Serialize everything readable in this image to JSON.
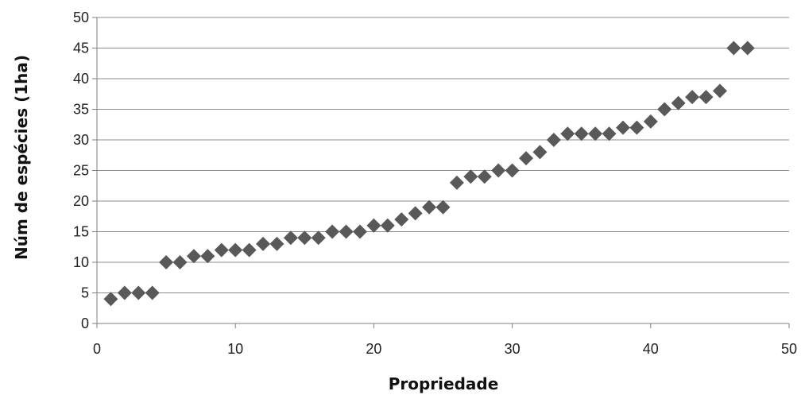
{
  "chart_data": {
    "type": "scatter",
    "title": "",
    "xlabel": "Propriedade",
    "ylabel": "Núm de espécies (1ha)",
    "xlim": [
      0,
      50
    ],
    "ylim": [
      0,
      50
    ],
    "x_ticks": [
      0,
      10,
      20,
      30,
      40,
      50
    ],
    "y_ticks": [
      0,
      5,
      10,
      15,
      20,
      25,
      30,
      35,
      40,
      45,
      50
    ],
    "grid": "horizontal",
    "legend": "none",
    "marker": "diamond",
    "marker_color": "#595959",
    "series": [
      {
        "x": [
          1,
          2,
          3,
          4,
          5,
          6,
          7,
          8,
          9,
          10,
          11,
          12,
          13,
          14,
          15,
          16,
          17,
          18,
          19,
          20,
          21,
          22,
          23,
          24,
          25,
          26,
          27,
          28,
          29,
          30,
          31,
          32,
          33,
          34,
          35,
          36,
          37,
          38,
          39,
          40,
          41,
          42,
          43,
          44,
          45,
          46,
          47
        ],
        "y": [
          4,
          5,
          5,
          5,
          10,
          10,
          11,
          11,
          12,
          12,
          12,
          13,
          13,
          14,
          14,
          14,
          15,
          15,
          15,
          16,
          16,
          17,
          18,
          19,
          19,
          23,
          24,
          24,
          25,
          25,
          27,
          28,
          30,
          31,
          31,
          31,
          31,
          32,
          32,
          33,
          35,
          36,
          37,
          37,
          38,
          45,
          45
        ]
      }
    ]
  }
}
